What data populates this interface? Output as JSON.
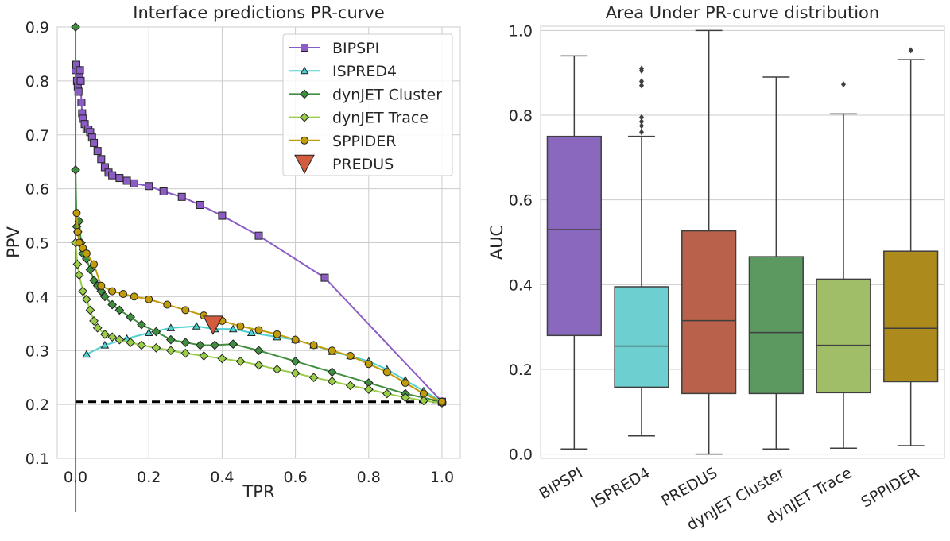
{
  "chart_data": [
    {
      "type": "line",
      "title": "Interface predictions PR-curve",
      "xlabel": "TPR",
      "ylabel": "PPV",
      "xlim": [
        -0.05,
        1.05
      ],
      "ylim": [
        0.1,
        0.9
      ],
      "xticks": [
        0.0,
        0.2,
        0.4,
        0.6,
        0.8,
        1.0
      ],
      "xtick_labels": [
        "0.0",
        "0.2",
        "0.4",
        "0.6",
        "0.8",
        "1.0"
      ],
      "yticks": [
        0.1,
        0.2,
        0.3,
        0.4,
        0.5,
        0.6,
        0.7,
        0.8,
        0.9
      ],
      "ytick_labels": [
        "0.1",
        "0.2",
        "0.3",
        "0.4",
        "0.5",
        "0.6",
        "0.7",
        "0.8",
        "0.9"
      ],
      "grid": true,
      "legend_position": "top-right",
      "baseline": {
        "y": 0.205,
        "x_range": [
          0.0,
          1.0
        ],
        "style": "dashed",
        "color": "#000000"
      },
      "series": [
        {
          "name": "BIPSPI",
          "color": "#8a5cc4",
          "marker": "square",
          "x": [
            0.0,
            0.0,
            0.002,
            0.004,
            0.006,
            0.008,
            0.01,
            0.012,
            0.014,
            0.016,
            0.018,
            0.02,
            0.025,
            0.03,
            0.035,
            0.04,
            0.045,
            0.05,
            0.06,
            0.07,
            0.08,
            0.09,
            0.1,
            0.12,
            0.14,
            0.16,
            0.2,
            0.24,
            0.29,
            0.34,
            0.4,
            0.5,
            0.68,
            1.0
          ],
          "y": [
            0.0,
            0.82,
            0.83,
            0.8,
            0.79,
            0.78,
            0.81,
            0.82,
            0.8,
            0.76,
            0.74,
            0.73,
            0.72,
            0.71,
            0.71,
            0.705,
            0.695,
            0.685,
            0.67,
            0.655,
            0.64,
            0.63,
            0.625,
            0.62,
            0.615,
            0.61,
            0.605,
            0.595,
            0.585,
            0.57,
            0.55,
            0.513,
            0.435,
            0.205
          ]
        },
        {
          "name": "ISPRED4",
          "color": "#4fd1d1",
          "marker": "triangle",
          "x": [
            0.03,
            0.08,
            0.14,
            0.2,
            0.26,
            0.33,
            0.38,
            0.43,
            0.48,
            0.55,
            0.6,
            0.65,
            0.7,
            0.75,
            0.8,
            0.85,
            0.9,
            0.95,
            1.0
          ],
          "y": [
            0.293,
            0.31,
            0.322,
            0.333,
            0.342,
            0.345,
            0.34,
            0.34,
            0.333,
            0.325,
            0.32,
            0.31,
            0.298,
            0.29,
            0.28,
            0.265,
            0.245,
            0.225,
            0.205
          ]
        },
        {
          "name": "dynJET Cluster",
          "color": "#3f8f3f",
          "marker": "diamond",
          "x": [
            0.0,
            0.0,
            0.003,
            0.006,
            0.01,
            0.015,
            0.02,
            0.03,
            0.04,
            0.05,
            0.06,
            0.07,
            0.08,
            0.1,
            0.12,
            0.15,
            0.18,
            0.22,
            0.26,
            0.3,
            0.34,
            0.38,
            0.43,
            0.5,
            0.6,
            0.7,
            0.8,
            0.9,
            1.0
          ],
          "y": [
            0.9,
            0.635,
            0.53,
            0.52,
            0.54,
            0.5,
            0.48,
            0.47,
            0.45,
            0.43,
            0.42,
            0.41,
            0.4,
            0.385,
            0.375,
            0.362,
            0.348,
            0.335,
            0.32,
            0.315,
            0.31,
            0.31,
            0.312,
            0.3,
            0.28,
            0.26,
            0.24,
            0.22,
            0.205
          ]
        },
        {
          "name": "dynJET Trace",
          "color": "#9acd4a",
          "marker": "diamond",
          "x": [
            0.0,
            0.005,
            0.01,
            0.02,
            0.03,
            0.04,
            0.05,
            0.06,
            0.08,
            0.1,
            0.12,
            0.15,
            0.18,
            0.22,
            0.26,
            0.3,
            0.35,
            0.4,
            0.45,
            0.5,
            0.55,
            0.6,
            0.65,
            0.7,
            0.75,
            0.8,
            0.85,
            0.9,
            0.95,
            1.0
          ],
          "y": [
            0.5,
            0.46,
            0.44,
            0.41,
            0.395,
            0.375,
            0.355,
            0.342,
            0.33,
            0.325,
            0.32,
            0.315,
            0.31,
            0.305,
            0.3,
            0.295,
            0.29,
            0.285,
            0.28,
            0.273,
            0.265,
            0.258,
            0.25,
            0.243,
            0.235,
            0.228,
            0.22,
            0.213,
            0.207,
            0.203
          ]
        },
        {
          "name": "SPPIDER",
          "color": "#c39c0a",
          "marker": "circle",
          "x": [
            0.003,
            0.006,
            0.01,
            0.02,
            0.03,
            0.05,
            0.07,
            0.1,
            0.13,
            0.16,
            0.2,
            0.25,
            0.3,
            0.35,
            0.4,
            0.45,
            0.5,
            0.55,
            0.6,
            0.65,
            0.7,
            0.75,
            0.8,
            0.85,
            0.9,
            0.95,
            1.0
          ],
          "y": [
            0.555,
            0.52,
            0.5,
            0.49,
            0.48,
            0.46,
            0.42,
            0.41,
            0.405,
            0.4,
            0.395,
            0.385,
            0.375,
            0.365,
            0.355,
            0.345,
            0.338,
            0.33,
            0.32,
            0.31,
            0.3,
            0.29,
            0.275,
            0.26,
            0.24,
            0.22,
            0.205
          ]
        },
        {
          "name": "PREDUS",
          "color": "#d35c3c",
          "marker": "triangle-down",
          "x": [
            0.375
          ],
          "y": [
            0.348
          ]
        }
      ]
    },
    {
      "type": "box",
      "title": "Area Under PR-curve distribution",
      "xlabel": "",
      "ylabel": "AUC",
      "ylim": [
        -0.01,
        1.01
      ],
      "yticks": [
        0.0,
        0.2,
        0.4,
        0.6,
        0.8,
        1.0
      ],
      "ytick_labels": [
        "0.0",
        "0.2",
        "0.4",
        "0.6",
        "0.8",
        "1.0"
      ],
      "grid": true,
      "categories": [
        "BIPSPI",
        "ISPRED4",
        "PREDUS",
        "dynJET Cluster",
        "dynJET Trace",
        "SPPIDER"
      ],
      "boxes": [
        {
          "name": "BIPSPI",
          "color": "#8a68be",
          "whisker_low": 0.012,
          "q1": 0.28,
          "median": 0.53,
          "q3": 0.75,
          "whisker_high": 0.94,
          "outliers": []
        },
        {
          "name": "ISPRED4",
          "color": "#6dcfd0",
          "whisker_low": 0.043,
          "q1": 0.158,
          "median": 0.255,
          "q3": 0.395,
          "whisker_high": 0.75,
          "outliers": [
            0.76,
            0.775,
            0.785,
            0.795,
            0.87,
            0.88,
            0.905,
            0.91
          ]
        },
        {
          "name": "PREDUS",
          "color": "#b9614a",
          "whisker_low": 0.0,
          "q1": 0.143,
          "median": 0.315,
          "q3": 0.527,
          "whisker_high": 1.0,
          "outliers": []
        },
        {
          "name": "dynJET Cluster",
          "color": "#5b9961",
          "whisker_low": 0.012,
          "q1": 0.143,
          "median": 0.287,
          "q3": 0.466,
          "whisker_high": 0.89,
          "outliers": []
        },
        {
          "name": "dynJET Trace",
          "color": "#a0bd68",
          "whisker_low": 0.014,
          "q1": 0.145,
          "median": 0.257,
          "q3": 0.413,
          "whisker_high": 0.803,
          "outliers": [
            0.873
          ]
        },
        {
          "name": "SPPIDER",
          "color": "#ac8a1c",
          "whisker_low": 0.02,
          "q1": 0.171,
          "median": 0.297,
          "q3": 0.479,
          "whisker_high": 0.931,
          "outliers": [
            0.953
          ]
        }
      ]
    }
  ]
}
